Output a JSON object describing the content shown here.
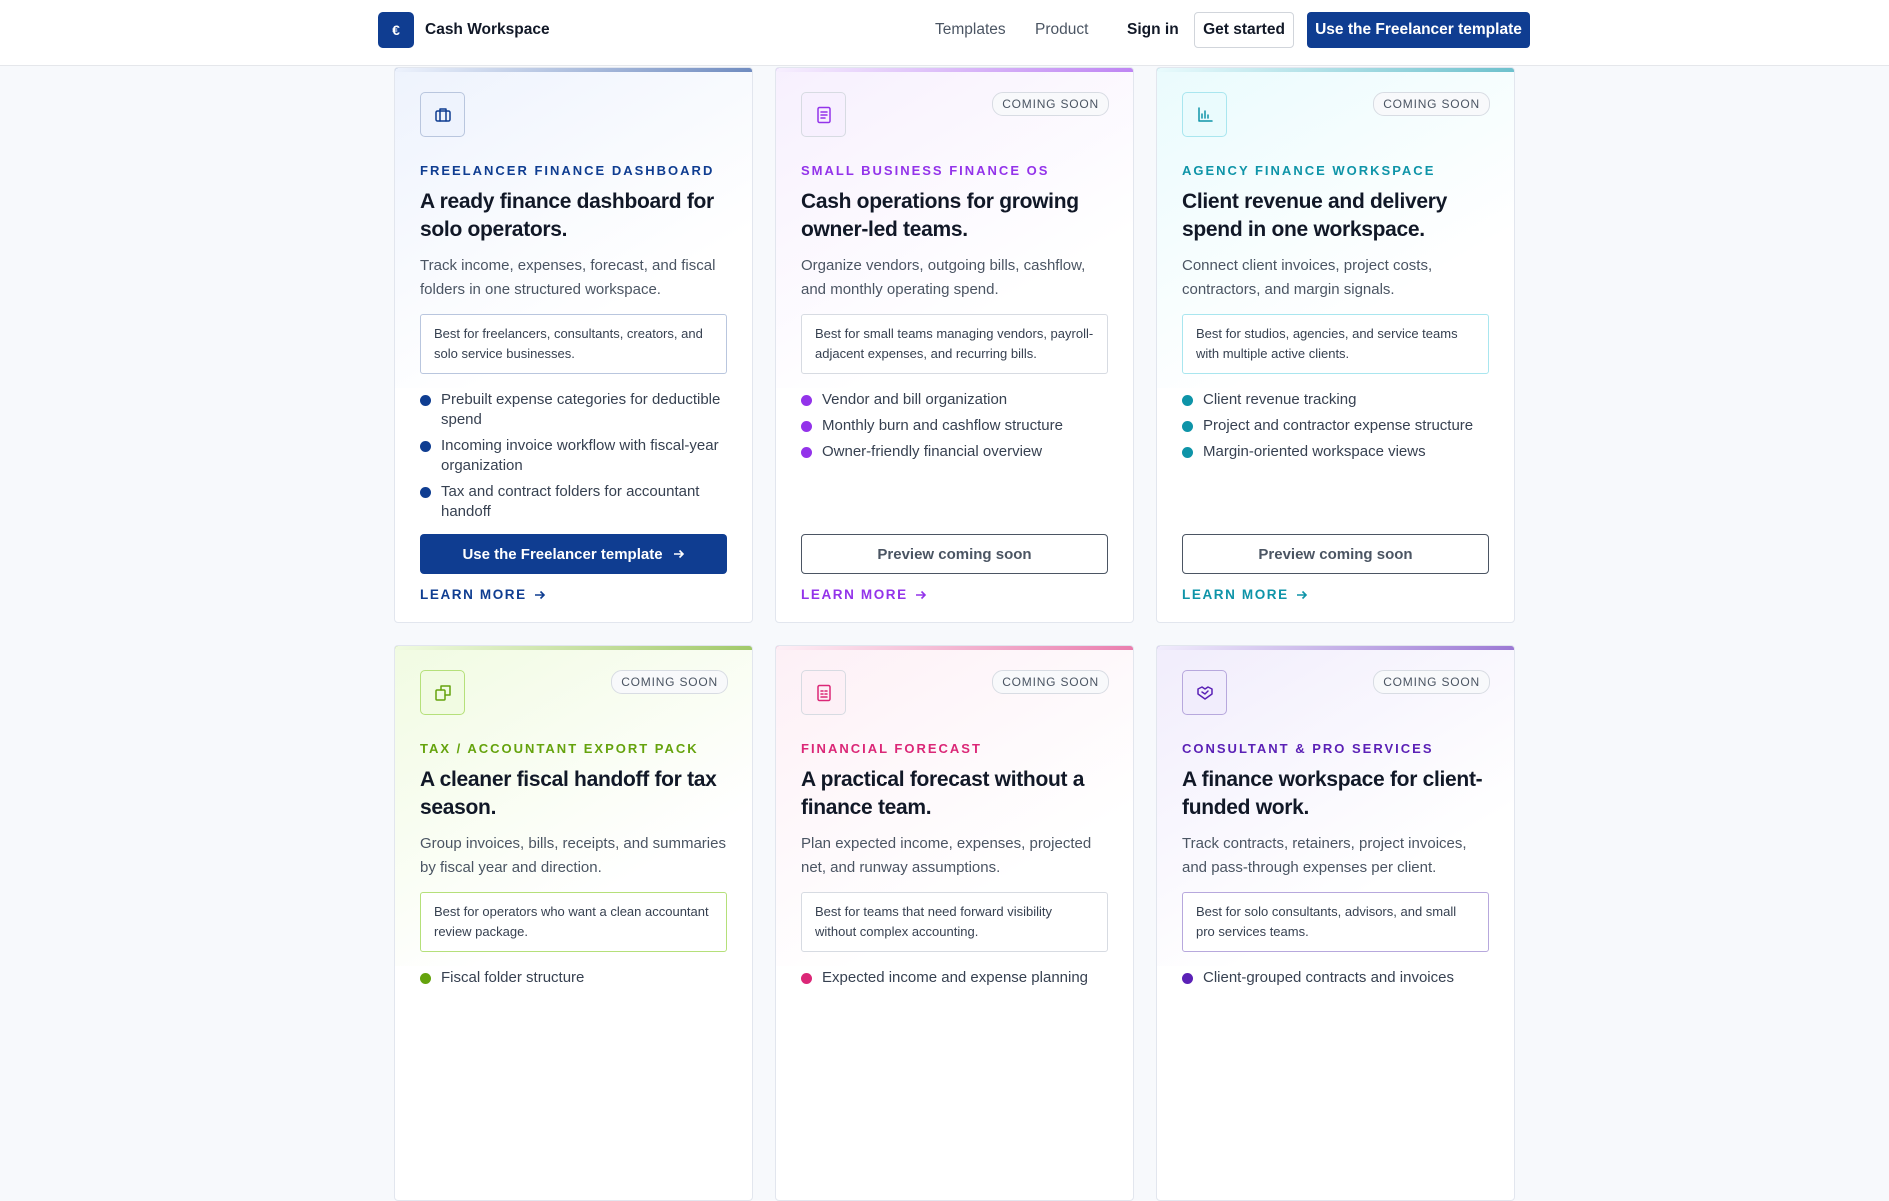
{
  "header": {
    "brand": "Cash Workspace",
    "nav": [
      "Templates",
      "Product"
    ],
    "sign_in": "Sign in",
    "get_started": "Get started",
    "cta": "Use the Freelancer template"
  },
  "cards": [
    {
      "eyebrow": "FREELANCER FINANCE DASHBOARD",
      "title": "A ready finance dashboard for solo operators.",
      "description": "Track income, expenses, forecast, and fiscal folders in one structured workspace.",
      "best_for": "Best for freelancers, consultants, creators, and solo service businesses.",
      "features": [
        "Prebuilt expense categories for deductible spend",
        "Incoming invoice workflow with fiscal-year organization",
        "Tax and contract folders for accountant handoff"
      ],
      "button": "Use the Freelancer template",
      "learn_more": "LEARN MORE"
    },
    {
      "badge": "COMING SOON",
      "eyebrow": "SMALL BUSINESS FINANCE OS",
      "title": "Cash operations for growing owner-led teams.",
      "description": "Organize vendors, outgoing bills, cashflow, and monthly operating spend.",
      "best_for": "Best for small teams managing vendors, payroll-adjacent expenses, and recurring bills.",
      "features": [
        "Vendor and bill organization",
        "Monthly burn and cashflow structure",
        "Owner-friendly financial overview"
      ],
      "button": "Preview coming soon",
      "learn_more": "LEARN MORE"
    },
    {
      "badge": "COMING SOON",
      "eyebrow": "AGENCY FINANCE WORKSPACE",
      "title": "Client revenue and delivery spend in one workspace.",
      "description": "Connect client invoices, project costs, contractors, and margin signals.",
      "best_for": "Best for studios, agencies, and service teams with multiple active clients.",
      "features": [
        "Client revenue tracking",
        "Project and contractor expense structure",
        "Margin-oriented workspace views"
      ],
      "button": "Preview coming soon",
      "learn_more": "LEARN MORE"
    },
    {
      "badge": "COMING SOON",
      "eyebrow": "TAX / ACCOUNTANT EXPORT PACK",
      "title": "A cleaner fiscal handoff for tax season.",
      "description": "Group invoices, bills, receipts, and summaries by fiscal year and direction.",
      "best_for": "Best for operators who want a clean accountant review package.",
      "features": [
        "Fiscal folder structure"
      ]
    },
    {
      "badge": "COMING SOON",
      "eyebrow": "FINANCIAL FORECAST",
      "title": "A practical forecast without a finance team.",
      "description": "Plan expected income, expenses, projected net, and runway assumptions.",
      "best_for": "Best for teams that need forward visibility without complex accounting.",
      "features": [
        "Expected income and expense planning"
      ]
    },
    {
      "badge": "COMING SOON",
      "eyebrow": "CONSULTANT & PRO SERVICES",
      "title": "A finance workspace for client-funded work.",
      "description": "Track contracts, retainers, project invoices, and pass-through expenses per client.",
      "best_for": "Best for solo consultants, advisors, and small pro services teams.",
      "features": [
        "Client-grouped contracts and invoices"
      ]
    }
  ]
}
